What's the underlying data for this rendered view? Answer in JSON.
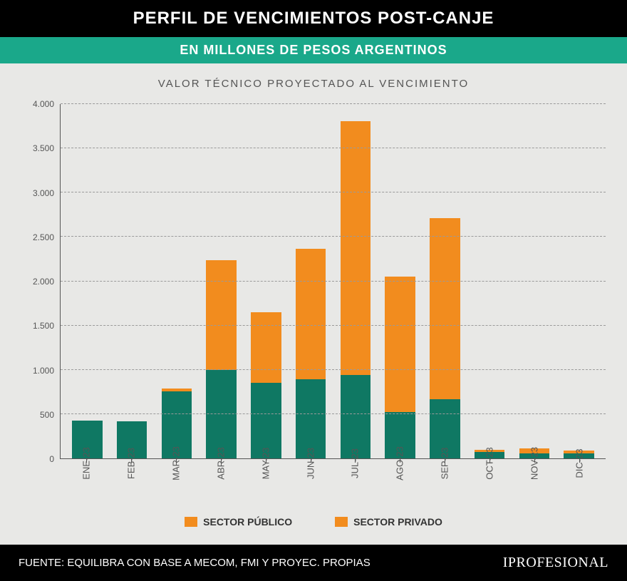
{
  "header": {
    "title": "PERFIL DE VENCIMIENTOS POST-CANJE",
    "subtitle": "EN MILLONES DE PESOS ARGENTINOS"
  },
  "chart": {
    "type": "stacked-bar",
    "title": "VALOR TÉCNICO PROYECTADO AL VENCIMIENTO",
    "background_color": "#e8e8e6",
    "grid_color": "#9a9a9a",
    "axis_color": "#555555",
    "label_color": "#555555",
    "label_fontsize": 12,
    "ylim_min": 0,
    "ylim_max": 4000,
    "ytick_step": 500,
    "yticks": [
      "0",
      "500",
      "1.000",
      "1.500",
      "2.000",
      "2.500",
      "3.000",
      "3.500",
      "4.000"
    ],
    "categories": [
      "ENE-23",
      "FEB-23",
      "MAR-23",
      "ABR-23",
      "MAY-23",
      "JUN-23",
      "JUL-23",
      "AGO-23",
      "SEP-23",
      "OCT-23",
      "NOV-23",
      "DIC-23"
    ],
    "series": {
      "publico": {
        "label": "SECTOR PÚBLICO",
        "color": "#0f7863",
        "values": [
          430,
          420,
          760,
          1000,
          850,
          890,
          940,
          520,
          670,
          70,
          60,
          60
        ]
      },
      "privado": {
        "label": "SECTOR PRIVADO",
        "color": "#f28c1e",
        "values": [
          0,
          0,
          30,
          1240,
          800,
          1480,
          2870,
          1530,
          2040,
          30,
          50,
          30
        ]
      }
    },
    "bar_width_pct": 78
  },
  "legend": {
    "swatch_color": "#f28c1e",
    "item1": "SECTOR PÚBLICO",
    "item2": "SECTOR PRIVADO"
  },
  "footer": {
    "source": "FUENTE: EQUILIBRA CON BASE A MECOM, FMI Y PROYEC. PROPIAS",
    "brand_prefix": "I",
    "brand_main": "PROFESIONAL"
  }
}
